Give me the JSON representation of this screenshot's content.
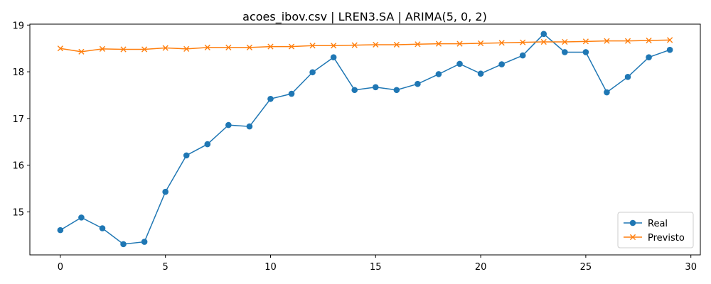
{
  "chart_data": {
    "type": "line",
    "title": "acoes_ibov.csv | LREN3.SA | ARIMA(5, 0, 2)",
    "xlabel": "",
    "ylabel": "",
    "xlim": [
      -1.45,
      30.45
    ],
    "ylim": [
      14.08,
      19.02
    ],
    "xticks": [
      0,
      5,
      10,
      15,
      20,
      25,
      30
    ],
    "yticks": [
      15,
      16,
      17,
      18,
      19
    ],
    "grid": false,
    "legend_position": "lower-right",
    "x": [
      0,
      1,
      2,
      3,
      4,
      5,
      6,
      7,
      8,
      9,
      10,
      11,
      12,
      13,
      14,
      15,
      16,
      17,
      18,
      19,
      20,
      21,
      22,
      23,
      24,
      25,
      26,
      27,
      28,
      29
    ],
    "series": [
      {
        "name": "Real",
        "marker": "circle",
        "color": "#1f77b4",
        "values": [
          14.61,
          14.88,
          14.65,
          14.31,
          14.36,
          15.43,
          16.21,
          16.45,
          16.86,
          16.83,
          17.42,
          17.53,
          17.99,
          18.31,
          17.61,
          17.67,
          17.61,
          17.74,
          17.95,
          18.17,
          17.96,
          18.16,
          18.35,
          18.81,
          18.42,
          18.42,
          17.56,
          17.89,
          18.31,
          18.47
        ]
      },
      {
        "name": "Previsto",
        "marker": "x",
        "color": "#ff7f0e",
        "values": [
          18.5,
          18.43,
          18.49,
          18.48,
          18.48,
          18.51,
          18.49,
          18.52,
          18.52,
          18.52,
          18.54,
          18.54,
          18.56,
          18.56,
          18.57,
          18.58,
          18.58,
          18.59,
          18.6,
          18.6,
          18.61,
          18.62,
          18.63,
          18.64,
          18.64,
          18.65,
          18.66,
          18.66,
          18.67,
          18.68
        ]
      }
    ]
  }
}
